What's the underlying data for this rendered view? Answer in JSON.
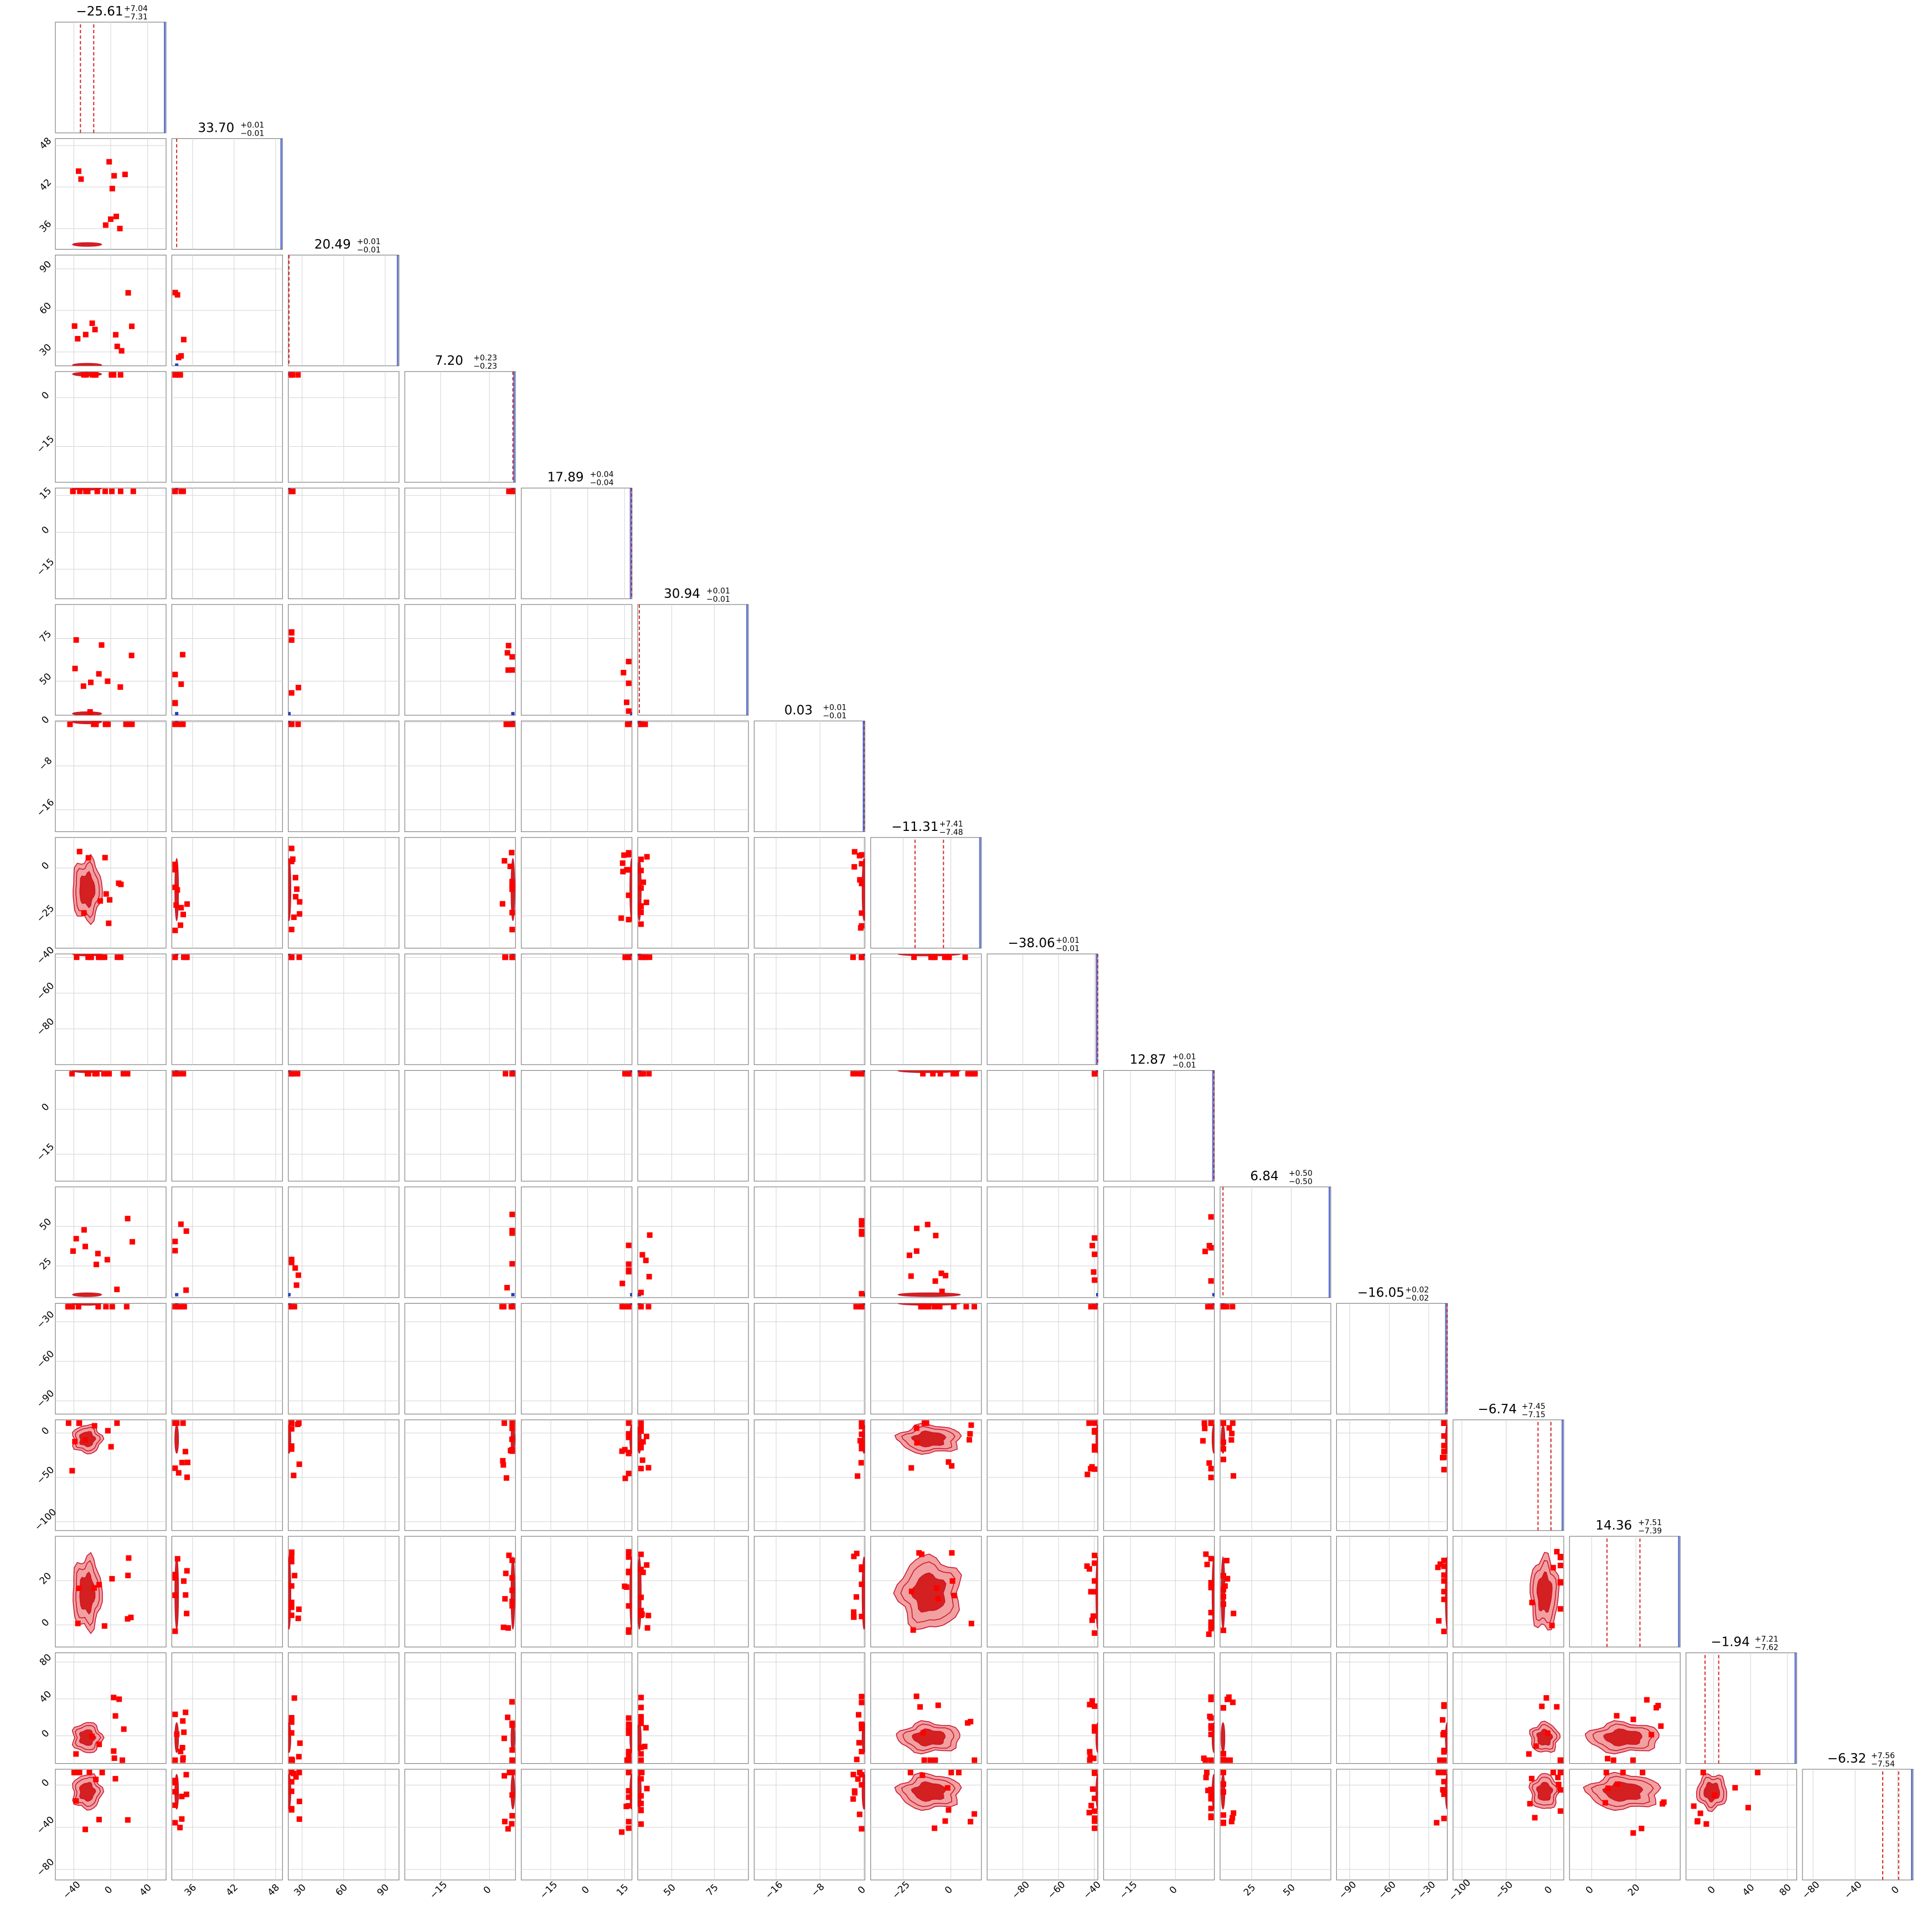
{
  "chart_data": {
    "type": "corner",
    "grid": true,
    "colors": {
      "truth": "#d62728",
      "fill_dark": "#d42020",
      "fill_light": "#f2a0a0",
      "contour": "#c8102e",
      "outlier": "#ff0000",
      "blue_mark": "#1f3fbf",
      "grid": "#d3d3d3",
      "frame": "#808080"
    },
    "parameters": [
      {
        "title_value": "−25.61",
        "upper": "+7.04",
        "lower": "−7.31",
        "range": [
          -60,
          60
        ],
        "ticks": [
          "−40",
          "0",
          "40"
        ],
        "tick_values": [
          -40,
          0,
          40
        ],
        "type": "wide",
        "median": -25.61,
        "err": 7.2
      },
      {
        "title_value": "33.70",
        "upper": "+0.01",
        "lower": "−0.01",
        "range": [
          33,
          49
        ],
        "ticks": [
          "36",
          "42",
          "48"
        ],
        "tick_values": [
          36,
          42,
          48
        ],
        "type": "narrow",
        "median": 33.7
      },
      {
        "title_value": "20.49",
        "upper": "+0.01",
        "lower": "−0.01",
        "range": [
          20,
          100
        ],
        "ticks": [
          "30",
          "60",
          "90"
        ],
        "tick_values": [
          30,
          60,
          90
        ],
        "type": "narrow",
        "median": 20.49
      },
      {
        "title_value": "7.20",
        "upper": "+0.23",
        "lower": "−0.23",
        "range": [
          -26,
          8
        ],
        "ticks": [
          "−15",
          "0"
        ],
        "tick_values": [
          -15,
          0
        ],
        "type": "narrow",
        "median": 7.2
      },
      {
        "title_value": "17.89",
        "upper": "+0.04",
        "lower": "−0.04",
        "range": [
          -27,
          18
        ],
        "ticks": [
          "−15",
          "0",
          "15"
        ],
        "tick_values": [
          -15,
          0,
          15
        ],
        "type": "narrow",
        "median": 17.89
      },
      {
        "title_value": "30.94",
        "upper": "+0.01",
        "lower": "−0.01",
        "range": [
          30,
          95
        ],
        "ticks": [
          "50",
          "75"
        ],
        "tick_values": [
          50,
          75
        ],
        "type": "narrow",
        "median": 30.94
      },
      {
        "title_value": "0.03",
        "upper": "+0.01",
        "lower": "−0.01",
        "range": [
          -20,
          0.2
        ],
        "ticks": [
          "−16",
          "−8",
          "0"
        ],
        "tick_values": [
          -16,
          -8,
          0
        ],
        "type": "narrow",
        "median": 0.03
      },
      {
        "title_value": "−11.31",
        "upper": "+7.41",
        "lower": "−7.48",
        "range": [
          -42,
          16
        ],
        "ticks": [
          "−25",
          "0"
        ],
        "tick_values": [
          -25,
          0
        ],
        "type": "wide",
        "median": -11.31,
        "err": 7.45
      },
      {
        "title_value": "−38.06",
        "upper": "+0.01",
        "lower": "−0.01",
        "range": [
          -100,
          -38
        ],
        "ticks": [
          "−80",
          "−60",
          "−40"
        ],
        "tick_values": [
          -80,
          -60,
          -40
        ],
        "type": "narrow",
        "median": -38.06
      },
      {
        "title_value": "12.87",
        "upper": "+0.01",
        "lower": "−0.01",
        "range": [
          -24,
          13
        ],
        "ticks": [
          "−15",
          "0"
        ],
        "tick_values": [
          -15,
          0
        ],
        "type": "narrow",
        "median": 12.87
      },
      {
        "title_value": "6.84",
        "upper": "+0.50",
        "lower": "−0.50",
        "range": [
          5,
          75
        ],
        "ticks": [
          "25",
          "50"
        ],
        "tick_values": [
          25,
          50
        ],
        "type": "narrow",
        "median": 6.84
      },
      {
        "title_value": "−16.05",
        "upper": "+0.02",
        "lower": "−0.02",
        "range": [
          -100,
          -16
        ],
        "ticks": [
          "−90",
          "−60",
          "−30"
        ],
        "tick_values": [
          -90,
          -60,
          -30
        ],
        "type": "narrow",
        "median": -16.05
      },
      {
        "title_value": "−6.74",
        "upper": "+7.45",
        "lower": "−7.15",
        "range": [
          -110,
          15
        ],
        "ticks": [
          "−100",
          "−50",
          "0"
        ],
        "tick_values": [
          -100,
          -50,
          0
        ],
        "type": "wide",
        "median": -6.74,
        "err": 7.3
      },
      {
        "title_value": "14.36",
        "upper": "+7.51",
        "lower": "−7.39",
        "range": [
          -10,
          40
        ],
        "ticks": [
          "0",
          "20"
        ],
        "tick_values": [
          0,
          20
        ],
        "type": "wide",
        "median": 14.36,
        "err": 7.45
      },
      {
        "title_value": "−1.94",
        "upper": "+7.21",
        "lower": "−7.62",
        "range": [
          -30,
          90
        ],
        "ticks": [
          "0",
          "40",
          "80"
        ],
        "tick_values": [
          0,
          40,
          80
        ],
        "type": "wide",
        "median": -1.94,
        "err": 7.4
      },
      {
        "title_value": "−6.32",
        "upper": "+7.56",
        "lower": "−7.54",
        "range": [
          -90,
          15
        ],
        "ticks": [
          "−80",
          "−40",
          "0"
        ],
        "tick_values": [
          -80,
          -40,
          0
        ],
        "type": "wide",
        "median": -6.32,
        "err": 7.55
      }
    ]
  }
}
